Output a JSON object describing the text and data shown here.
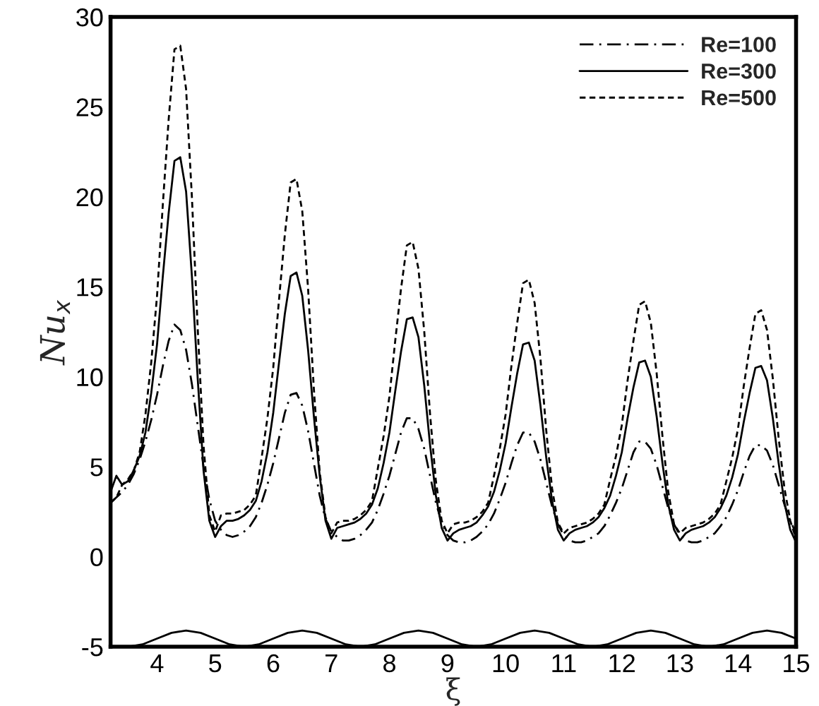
{
  "chart_data": {
    "type": "line",
    "xlabel": "ξ",
    "ylabel": "Nu$_{x}$",
    "xlim": [
      3.2,
      15
    ],
    "ylim": [
      -5,
      30
    ],
    "xticks": [
      4,
      5,
      6,
      7,
      8,
      9,
      10,
      11,
      12,
      13,
      14,
      15
    ],
    "yticks": [
      -5,
      0,
      5,
      10,
      15,
      20,
      25,
      30
    ],
    "grid": false,
    "legend": "top right",
    "marker": "none",
    "x": [
      3.2,
      3.3,
      3.4,
      3.5,
      3.6,
      3.7,
      3.8,
      3.9,
      4.0,
      4.1,
      4.2,
      4.3,
      4.4,
      4.5,
      4.6,
      4.7,
      4.8,
      4.9,
      5.0,
      5.1,
      5.2,
      5.3,
      5.4,
      5.5,
      5.6,
      5.7,
      5.8,
      5.9,
      6.0,
      6.1,
      6.2,
      6.3,
      6.4,
      6.5,
      6.6,
      6.7,
      6.8,
      6.9,
      7.0,
      7.1,
      7.2,
      7.3,
      7.4,
      7.5,
      7.6,
      7.7,
      7.8,
      7.9,
      8.0,
      8.1,
      8.2,
      8.3,
      8.4,
      8.5,
      8.6,
      8.7,
      8.8,
      8.9,
      9.0,
      9.1,
      9.2,
      9.3,
      9.4,
      9.5,
      9.6,
      9.7,
      9.8,
      9.9,
      10.0,
      10.1,
      10.2,
      10.3,
      10.4,
      10.5,
      10.6,
      10.7,
      10.8,
      10.9,
      11.0,
      11.1,
      11.2,
      11.3,
      11.4,
      11.5,
      11.6,
      11.7,
      11.8,
      11.9,
      12.0,
      12.1,
      12.2,
      12.3,
      12.4,
      12.5,
      12.6,
      12.7,
      12.8,
      12.9,
      13.0,
      13.1,
      13.2,
      13.3,
      13.4,
      13.5,
      13.6,
      13.7,
      13.8,
      13.9,
      14.0,
      14.1,
      14.2,
      14.3,
      14.4,
      14.5,
      14.6,
      14.7,
      14.8,
      14.9,
      15.0
    ],
    "series": [
      {
        "name": "Re=100",
        "color": "#000000",
        "line_style": "dashdot",
        "values": [
          3.0,
          3.3,
          3.6,
          4.0,
          4.6,
          5.4,
          6.4,
          7.6,
          9.0,
          10.6,
          12.0,
          12.9,
          12.6,
          11.5,
          9.6,
          7.3,
          5.0,
          3.2,
          2.0,
          1.5,
          1.2,
          1.1,
          1.2,
          1.4,
          1.7,
          2.2,
          3.0,
          4.0,
          5.2,
          6.6,
          8.0,
          9.0,
          9.1,
          8.4,
          7.0,
          5.2,
          3.4,
          2.1,
          1.4,
          1.1,
          0.9,
          0.9,
          1.0,
          1.2,
          1.5,
          1.9,
          2.6,
          3.5,
          4.5,
          5.7,
          6.9,
          7.7,
          7.7,
          7.1,
          6.0,
          4.5,
          3.0,
          1.9,
          1.2,
          0.9,
          0.8,
          0.8,
          0.9,
          1.1,
          1.4,
          1.8,
          2.4,
          3.2,
          4.1,
          5.2,
          6.2,
          6.9,
          6.9,
          6.4,
          5.4,
          4.1,
          2.8,
          1.8,
          1.2,
          0.9,
          0.8,
          0.8,
          0.9,
          1.1,
          1.3,
          1.7,
          2.3,
          3.0,
          3.8,
          4.8,
          5.8,
          6.4,
          6.4,
          6.0,
          5.1,
          3.9,
          2.7,
          1.8,
          1.2,
          0.9,
          0.8,
          0.8,
          0.9,
          1.1,
          1.3,
          1.7,
          2.2,
          2.9,
          3.7,
          4.7,
          5.6,
          6.2,
          6.2,
          5.9,
          5.1,
          4.0,
          2.9,
          2.0,
          1.3
        ]
      },
      {
        "name": "Re=300",
        "color": "#000000",
        "line_style": "solid",
        "values": [
          3.6,
          4.5,
          4.0,
          4.2,
          4.8,
          5.6,
          6.9,
          9.1,
          11.8,
          15.6,
          19.1,
          22.0,
          22.2,
          20.3,
          15.6,
          9.9,
          4.8,
          2.0,
          1.1,
          1.7,
          2.0,
          2.0,
          2.1,
          2.3,
          2.6,
          3.1,
          4.2,
          5.8,
          8.0,
          10.8,
          13.5,
          15.6,
          15.8,
          14.5,
          11.5,
          7.8,
          4.5,
          2.0,
          1.0,
          1.6,
          1.7,
          1.8,
          1.9,
          2.1,
          2.4,
          2.9,
          3.8,
          5.2,
          6.9,
          9.2,
          11.4,
          13.2,
          13.3,
          12.2,
          9.5,
          6.2,
          3.4,
          1.6,
          0.9,
          1.3,
          1.5,
          1.6,
          1.7,
          1.9,
          2.3,
          2.8,
          3.6,
          4.8,
          6.3,
          8.3,
          10.2,
          11.8,
          11.9,
          10.9,
          8.4,
          5.5,
          3.1,
          1.5,
          0.9,
          1.3,
          1.5,
          1.6,
          1.7,
          1.9,
          2.2,
          2.7,
          3.4,
          4.5,
          5.8,
          7.7,
          9.4,
          10.8,
          10.9,
          10.0,
          7.8,
          5.2,
          2.9,
          1.5,
          0.9,
          1.3,
          1.5,
          1.6,
          1.7,
          1.9,
          2.2,
          2.7,
          3.4,
          4.4,
          5.7,
          7.5,
          9.1,
          10.5,
          10.6,
          9.8,
          7.7,
          5.2,
          3.0,
          1.5,
          0.8
        ]
      },
      {
        "name": "Re=500",
        "color": "#000000",
        "line_style": "dashed",
        "values": [
          3.0,
          3.3,
          4.0,
          4.3,
          4.8,
          5.8,
          7.9,
          10.8,
          14.5,
          19.6,
          24.3,
          28.2,
          28.4,
          26.0,
          20.0,
          12.7,
          6.2,
          2.3,
          1.4,
          2.3,
          2.4,
          2.4,
          2.5,
          2.6,
          2.9,
          3.4,
          5.5,
          7.7,
          10.5,
          14.3,
          17.9,
          20.8,
          21.0,
          19.2,
          14.9,
          9.3,
          4.7,
          2.2,
          1.3,
          1.9,
          2.0,
          2.0,
          2.1,
          2.3,
          2.6,
          3.1,
          4.9,
          6.7,
          8.9,
          12.0,
          14.9,
          17.3,
          17.5,
          16.0,
          12.5,
          7.9,
          4.2,
          2.0,
          1.3,
          1.8,
          1.9,
          1.9,
          2.0,
          2.2,
          2.5,
          3.0,
          4.5,
          6.0,
          7.9,
          10.6,
          13.0,
          15.2,
          15.4,
          14.1,
          11.0,
          7.0,
          3.8,
          1.9,
          1.3,
          1.6,
          1.7,
          1.8,
          1.9,
          2.1,
          2.4,
          2.9,
          4.3,
          5.6,
          7.3,
          9.8,
          12.0,
          14.0,
          14.2,
          13.0,
          10.2,
          6.7,
          3.6,
          1.8,
          1.3,
          1.6,
          1.7,
          1.8,
          1.9,
          2.1,
          2.4,
          2.9,
          4.2,
          5.5,
          7.1,
          9.5,
          11.6,
          13.5,
          13.7,
          12.6,
          9.9,
          6.6,
          3.8,
          2.0,
          1.0
        ]
      },
      {
        "color": "#000000",
        "line_style": "solid",
        "x": [
          3.2,
          3.5,
          3.75,
          4.0,
          4.25,
          4.5,
          4.75,
          5.0,
          5.25,
          5.5,
          5.75,
          6.0,
          6.25,
          6.5,
          6.75,
          7.0,
          7.25,
          7.5,
          7.75,
          8.0,
          8.25,
          8.5,
          8.75,
          9.0,
          9.25,
          9.5,
          9.75,
          10.0,
          10.25,
          10.5,
          10.75,
          11.0,
          11.25,
          11.5,
          11.75,
          12.0,
          12.25,
          12.5,
          12.75,
          13.0,
          13.25,
          13.5,
          13.75,
          14.0,
          14.25,
          14.5,
          14.75,
          15.0
        ],
        "values": [
          -5,
          -5,
          -4.87,
          -4.55,
          -4.23,
          -4.1,
          -4.23,
          -4.55,
          -4.87,
          -5,
          -4.87,
          -4.55,
          -4.23,
          -4.1,
          -4.23,
          -4.55,
          -4.87,
          -5,
          -4.87,
          -4.55,
          -4.23,
          -4.1,
          -4.23,
          -4.55,
          -4.87,
          -5,
          -4.87,
          -4.55,
          -4.23,
          -4.1,
          -4.23,
          -4.55,
          -4.87,
          -5,
          -4.87,
          -4.55,
          -4.23,
          -4.1,
          -4.23,
          -4.55,
          -4.87,
          -5,
          -4.87,
          -4.55,
          -4.23,
          -4.1,
          -4.23,
          -4.55
        ]
      }
    ]
  }
}
